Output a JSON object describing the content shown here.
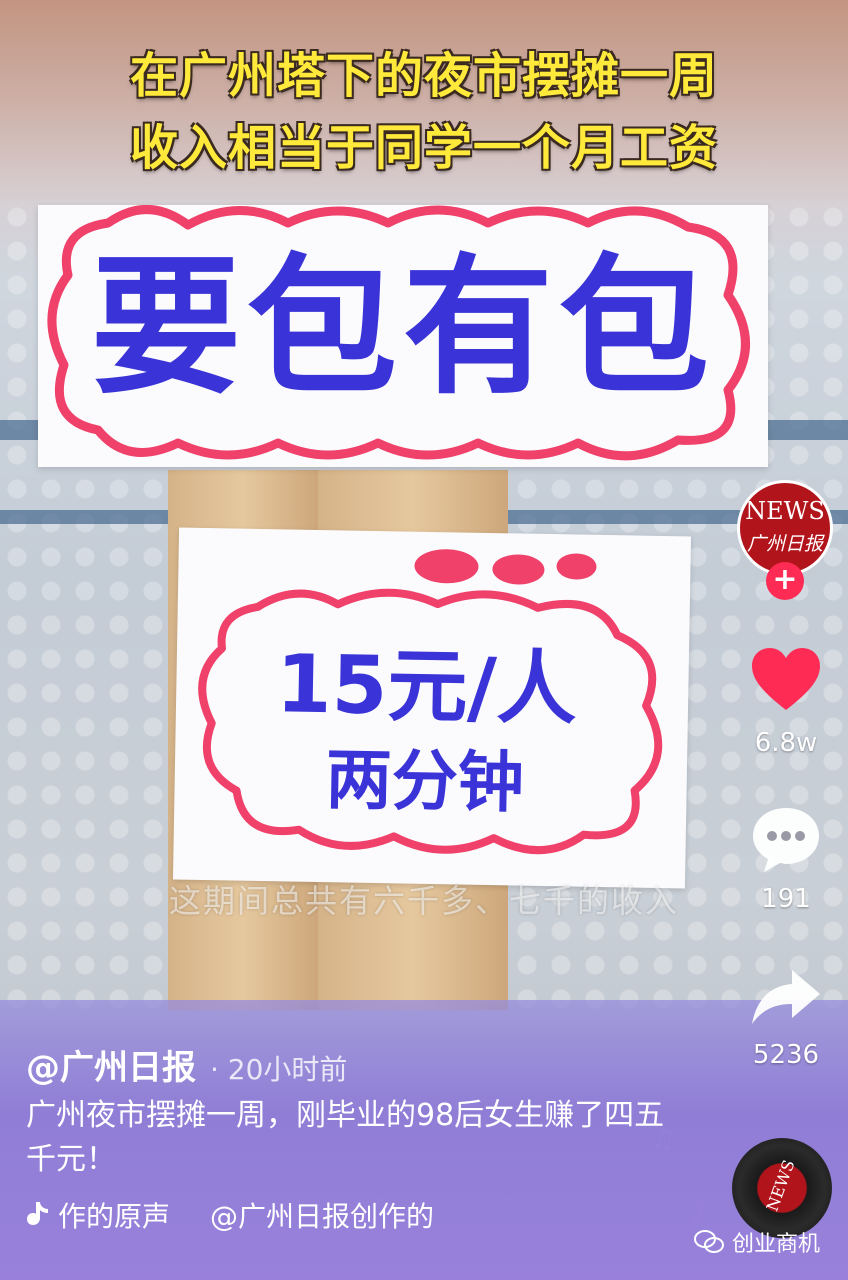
{
  "video": {
    "headline_lines": [
      "在广州塔下的夜市摆摊一周",
      "收入相当于同学一个月工资"
    ],
    "sign_top_text": "要包有包",
    "sign_bottom_lines": [
      "15元/人",
      "两分钟"
    ],
    "subtitle": "这期间总共有六千多、七千的收入"
  },
  "actions": {
    "avatar_news": "NEWS",
    "avatar_brand": "广州日报",
    "follow_symbol": "+",
    "likes": "6.8w",
    "comments": "191",
    "shares": "5236"
  },
  "post": {
    "author": "@广州日报",
    "time": "· 20小时前",
    "caption": "广州夜市摆摊一周，刚毕业的98后女生赚了四五千元！",
    "music_left": "作的原声",
    "music_right": "@广州日报创作的",
    "disc_label": "NEWS"
  },
  "watermark": {
    "label": "创业商机"
  },
  "colors": {
    "like_red": "#fe2c55",
    "headline_yellow": "#ffe93a",
    "marker_blue": "#3a33d8",
    "marker_pink": "#f0416a"
  },
  "icons": [
    "heart-icon",
    "comment-icon",
    "share-icon",
    "music-note-icon",
    "wechat-icon"
  ]
}
